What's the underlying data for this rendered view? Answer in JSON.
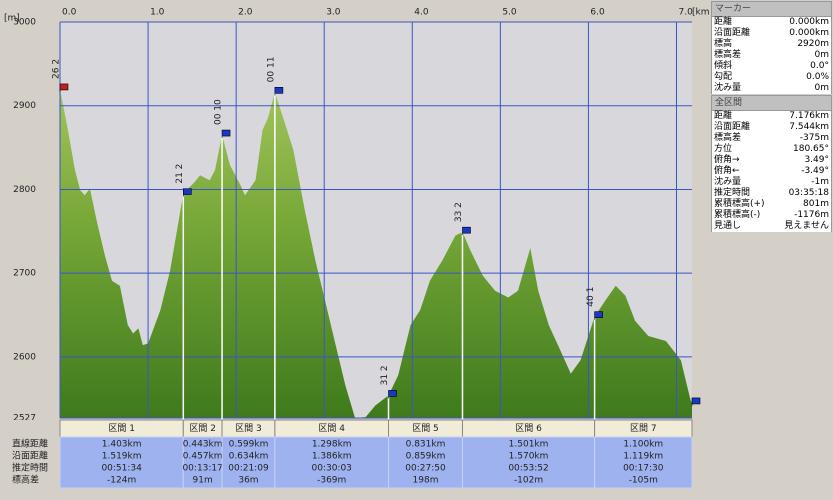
{
  "chart_data": {
    "type": "area",
    "x_unit": "[km]",
    "y_unit": "[m]",
    "x": [
      0,
      0.09,
      0.17,
      0.23,
      0.28,
      0.34,
      0.42,
      0.51,
      0.59,
      0.68,
      0.77,
      0.83,
      0.89,
      0.94,
      1.0,
      1.14,
      1.25,
      1.4,
      1.53,
      1.59,
      1.7,
      1.76,
      1.84,
      1.93,
      2.05,
      2.1,
      2.22,
      2.3,
      2.36,
      2.44,
      2.56,
      2.65,
      2.78,
      2.9,
      3.01,
      3.13,
      3.24,
      3.35,
      3.47,
      3.58,
      3.73,
      3.84,
      3.98,
      4.09,
      4.2,
      4.34,
      4.49,
      4.57,
      4.66,
      4.8,
      4.94,
      5.09,
      5.2,
      5.34,
      5.43,
      5.55,
      5.68,
      5.8,
      5.91,
      6.07,
      6.19,
      6.31,
      6.42,
      6.53,
      6.68,
      6.88,
      7.05,
      7.16,
      7.176
    ],
    "values": [
      2920,
      2871,
      2823,
      2799,
      2793,
      2801,
      2761,
      2721,
      2691,
      2685,
      2638,
      2628,
      2634,
      2614,
      2616,
      2656,
      2703,
      2795,
      2809,
      2817,
      2811,
      2823,
      2865,
      2829,
      2805,
      2793,
      2811,
      2871,
      2885,
      2916,
      2877,
      2847,
      2775,
      2715,
      2667,
      2614,
      2566,
      2527,
      2528,
      2542,
      2554,
      2578,
      2638,
      2656,
      2691,
      2715,
      2745,
      2749,
      2727,
      2697,
      2679,
      2671,
      2679,
      2730,
      2679,
      2638,
      2608,
      2580,
      2596,
      2648,
      2667,
      2685,
      2673,
      2643,
      2625,
      2619,
      2596,
      2548,
      2545
    ],
    "xlim": [
      0,
      7.176
    ],
    "ylim": [
      2527,
      3000
    ],
    "xticks": [
      {
        "value": 0,
        "label": "0.0"
      },
      {
        "value": 1,
        "label": "1.0"
      },
      {
        "value": 2,
        "label": "2.0"
      },
      {
        "value": 3,
        "label": "3.0"
      },
      {
        "value": 4,
        "label": "4.0"
      },
      {
        "value": 5,
        "label": "5.0"
      },
      {
        "value": 6,
        "label": "6.0"
      },
      {
        "value": 7,
        "label": "7.0"
      }
    ],
    "yticks": [
      2527,
      2600,
      2700,
      2800,
      2900,
      3000
    ],
    "grid": true,
    "markers": {
      "x": [
        0,
        1.4,
        1.84,
        2.44,
        3.73,
        4.57,
        6.07,
        7.176
      ],
      "labels": [
        "26 2",
        "21 2",
        "00 10",
        "00 11",
        "31 2",
        "33 2",
        "40 1",
        null
      ]
    }
  },
  "segments": {
    "row_labels": [
      "直線距離",
      "沿面距離",
      "推定時間",
      "標高差"
    ],
    "columns": [
      {
        "name": "区間 1",
        "cells": [
          "1.403km",
          "1.519km",
          "00:51:34",
          "-124m"
        ]
      },
      {
        "name": "区間 2",
        "cells": [
          "0.443km",
          "0.457km",
          "00:13:17",
          "91m"
        ]
      },
      {
        "name": "区間 3",
        "cells": [
          "0.599km",
          "0.634km",
          "00:21:09",
          "36m"
        ]
      },
      {
        "name": "区間 4",
        "cells": [
          "1.298km",
          "1.386km",
          "00:30:03",
          "-369m"
        ]
      },
      {
        "name": "区間 5",
        "cells": [
          "0.831km",
          "0.859km",
          "00:27:50",
          "198m"
        ]
      },
      {
        "name": "区間 6",
        "cells": [
          "1.501km",
          "1.570km",
          "00:53:52",
          "-102m"
        ]
      },
      {
        "name": "区間 7",
        "cells": [
          "1.100km",
          "1.119km",
          "00:17:30",
          "-105m"
        ]
      }
    ]
  },
  "marker_panel": {
    "title": "マーカー",
    "rows": [
      [
        "距離",
        "0.000km"
      ],
      [
        "沿面距離",
        "0.000km"
      ],
      [
        "標高",
        "2920m"
      ],
      [
        "標高差",
        "0m"
      ],
      [
        "傾斜",
        "0.0°"
      ],
      [
        "勾配",
        "0.0%"
      ],
      [
        "沈み量",
        "0m"
      ]
    ]
  },
  "total_panel": {
    "title": "全区間",
    "rows": [
      [
        "距離",
        "7.176km"
      ],
      [
        "沿面距離",
        "7.544km"
      ],
      [
        "標高差",
        "-375m"
      ],
      [
        "方位",
        "180.65°"
      ],
      [
        "俯角→",
        "3.49°"
      ],
      [
        "俯角←",
        "-3.49°"
      ],
      [
        "沈み量",
        "-1m"
      ],
      [
        "推定時間",
        "03:35:18"
      ],
      [
        "累積標高(+)",
        "801m"
      ],
      [
        "累積標高(-)",
        "-1176m"
      ],
      [
        "見通し",
        "見えません"
      ]
    ]
  }
}
